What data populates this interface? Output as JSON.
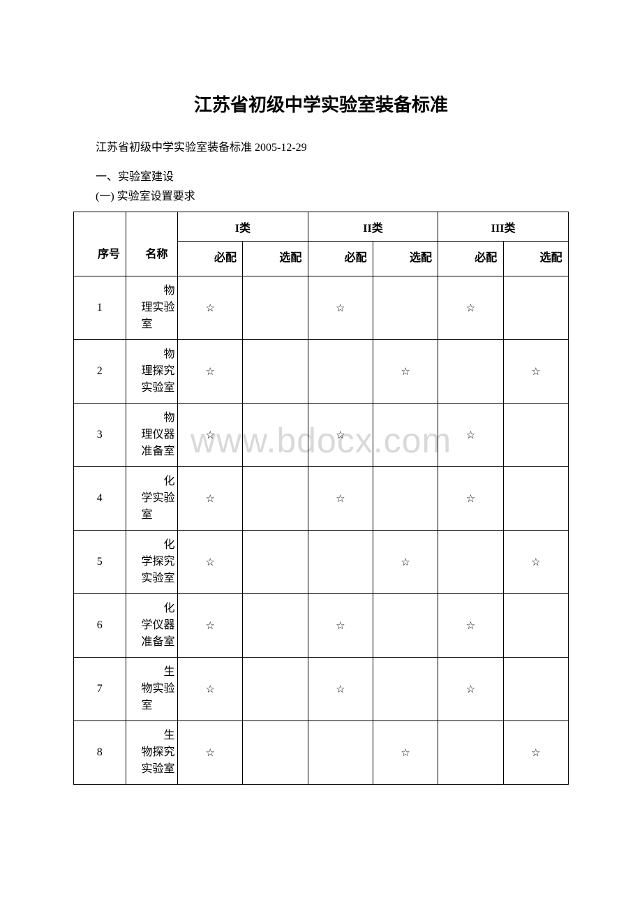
{
  "title": "江苏省初级中学实验室装备标准",
  "subtitle": "江苏省初级中学实验室装备标准 2005-12-29",
  "section1": "一、实验室建设",
  "section2": "(一) 实验室设置要求",
  "watermark": "www.bdocx.com",
  "star": "☆",
  "headers": {
    "seq": "　　序号",
    "name": "　　名称",
    "cat1": "I类",
    "cat2": "II类",
    "cat3": "III类",
    "req": "　　必配",
    "opt": "　　选配"
  },
  "rows": [
    {
      "seq": "1",
      "name": "　　物理实验室",
      "c1r": "☆",
      "c1o": "",
      "c2r": "☆",
      "c2o": "",
      "c3r": "☆",
      "c3o": ""
    },
    {
      "seq": "2",
      "name": "　　物理探究实验室",
      "c1r": "☆",
      "c1o": "",
      "c2r": "",
      "c2o": "☆",
      "c3r": "",
      "c3o": "☆"
    },
    {
      "seq": "3",
      "name": "　　物理仪器准备室",
      "c1r": "☆",
      "c1o": "",
      "c2r": "☆",
      "c2o": "",
      "c3r": "☆",
      "c3o": ""
    },
    {
      "seq": "4",
      "name": "　　化学实验室",
      "c1r": "☆",
      "c1o": "",
      "c2r": "☆",
      "c2o": "",
      "c3r": "☆",
      "c3o": ""
    },
    {
      "seq": "5",
      "name": "　　化学探究实验室",
      "c1r": "☆",
      "c1o": "",
      "c2r": "",
      "c2o": "☆",
      "c3r": "",
      "c3o": "☆"
    },
    {
      "seq": "6",
      "name": "　　化学仪器准备室",
      "c1r": "☆",
      "c1o": "",
      "c2r": "☆",
      "c2o": "",
      "c3r": "☆",
      "c3o": ""
    },
    {
      "seq": "7",
      "name": "　　生物实验室",
      "c1r": "☆",
      "c1o": "",
      "c2r": "☆",
      "c2o": "",
      "c3r": "☆",
      "c3o": ""
    },
    {
      "seq": "8",
      "name": "　　生物探究实验室",
      "c1r": "☆",
      "c1o": "",
      "c2r": "",
      "c2o": "☆",
      "c3r": "",
      "c3o": "☆"
    }
  ]
}
